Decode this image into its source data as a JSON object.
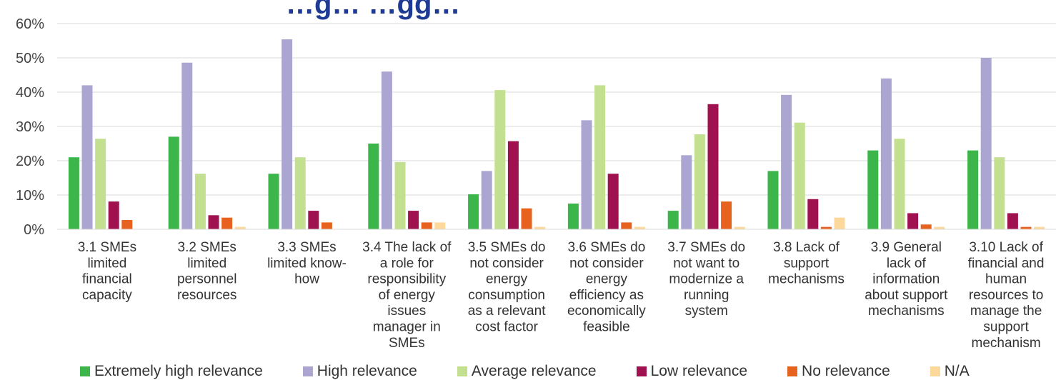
{
  "chart_data": {
    "type": "bar",
    "title": "…g… …gg…",
    "categories": [
      "3.1 SMEs limited financial capacity",
      "3.2 SMEs limited personnel resources",
      "3.3 SMEs limited know-how",
      "3.4 The lack of a role for responsibility of energy issues manager in SMEs",
      "3.5 SMEs do not consider energy consumption as a relevant cost factor",
      "3.6 SMEs do not consider energy efficiency as economically feasible",
      "3.7 SMEs do not want to modernize a running system",
      "3.8 Lack of support mechanisms",
      "3.9 General lack of information about support mechanisms",
      "3.10 Lack of financial and human resources to manage the support mechanism"
    ],
    "category_lines": [
      [
        "3.1 SMEs",
        "limited",
        "financial",
        "capacity"
      ],
      [
        "3.2 SMEs",
        "limited",
        "personnel",
        "resources"
      ],
      [
        "3.3 SMEs",
        "limited know-",
        "how"
      ],
      [
        "3.4 The lack of",
        "a role for",
        "responsibility",
        "of energy",
        "issues",
        "manager in",
        "SMEs"
      ],
      [
        "3.5 SMEs do",
        "not consider",
        "energy",
        "consumption",
        "as a relevant",
        "cost factor"
      ],
      [
        "3.6 SMEs do",
        "not consider",
        "energy",
        "efficiency as",
        "economically",
        "feasible"
      ],
      [
        "3.7 SMEs do",
        "not want to",
        "modernize a",
        "running",
        "system"
      ],
      [
        "3.8 Lack of",
        "support",
        "mechanisms"
      ],
      [
        "3.9 General",
        "lack of",
        "information",
        "about support",
        "mechanisms"
      ],
      [
        "3.10 Lack of",
        "financial and",
        "human",
        "resources to",
        "manage the",
        "support",
        "mechanism"
      ]
    ],
    "series": [
      {
        "name": "Extremely high relevance",
        "color": "#3cb54a",
        "values": [
          21,
          27,
          16.2,
          25,
          10.2,
          7.5,
          5.4,
          17,
          23,
          23
        ]
      },
      {
        "name": "High relevance",
        "color": "#aaa5d1",
        "values": [
          42,
          48.6,
          55.4,
          46,
          17,
          31.8,
          21.6,
          39.2,
          44,
          50
        ]
      },
      {
        "name": "Average relevance",
        "color": "#c3e090",
        "values": [
          26.4,
          16.2,
          21,
          19.6,
          40.6,
          42,
          27.7,
          31.1,
          26.4,
          21
        ]
      },
      {
        "name": "Low relevance",
        "color": "#a0124f",
        "values": [
          8.1,
          4.1,
          5.4,
          5.4,
          25.7,
          16.2,
          36.5,
          8.8,
          4.7,
          4.7
        ]
      },
      {
        "name": "No relevance",
        "color": "#e8621f",
        "values": [
          2.7,
          3.4,
          2,
          2,
          6.1,
          2,
          8.1,
          0.7,
          1.4,
          0.7
        ]
      },
      {
        "name": "N/A",
        "color": "#fdd89b",
        "values": [
          0,
          0.7,
          0,
          2,
          0.7,
          0.7,
          0.7,
          3.4,
          0.7,
          0.7
        ]
      }
    ],
    "y_ticks": [
      "0%",
      "10%",
      "20%",
      "30%",
      "40%",
      "50%",
      "60%"
    ],
    "ylim": [
      0,
      60
    ],
    "xlabel": "",
    "ylabel": "",
    "grid": true,
    "legend_position": "bottom"
  }
}
